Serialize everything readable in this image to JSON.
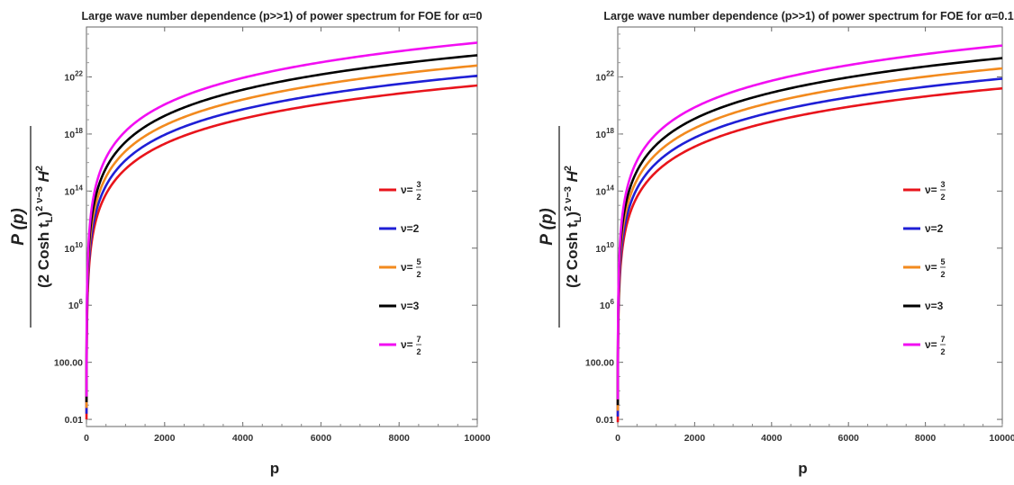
{
  "chart_data": [
    {
      "type": "line",
      "title": "Large wave number dependence (p>>1) of power spectrum for FOE for α=0",
      "xlabel": "p",
      "ylabel": {
        "numerator": "P (p)",
        "denominator": "(2 Cosh t",
        "sub": "L",
        "close": ")",
        "exp": "2 ν−3",
        "tail": "H",
        "tail_exp": "2"
      },
      "xlim": [
        0,
        10000
      ],
      "ylim_log10": [
        -2.5,
        25.5
      ],
      "y_scale": "log",
      "x_ticks": [
        "0",
        "2000",
        "4000",
        "6000",
        "8000",
        "10000"
      ],
      "y_ticks": [
        {
          "label": "0.01",
          "mant": "0.01",
          "exp": ""
        },
        {
          "label": "100.00",
          "mant": "100.00",
          "exp": ""
        },
        {
          "label": "10^6",
          "mant": "10",
          "exp": "6"
        },
        {
          "label": "10^10",
          "mant": "10",
          "exp": "10"
        },
        {
          "label": "10^14",
          "mant": "10",
          "exp": "14"
        },
        {
          "label": "10^18",
          "mant": "10",
          "exp": "18"
        },
        {
          "label": "10^22",
          "mant": "10",
          "exp": "22"
        }
      ],
      "grid": false,
      "legend_position": "right",
      "model": "log10 y = offset + slope * log10 p",
      "series": [
        {
          "name": "ν=3/2",
          "label_main": "ν=",
          "frac_num": "3",
          "frac_den": "2",
          "color": "#e8141b",
          "slope": 5.85,
          "offset": -2.0
        },
        {
          "name": "ν=2",
          "label_main": "ν=2",
          "frac_num": "",
          "frac_den": "",
          "color": "#1f1fd6",
          "slope": 5.92,
          "offset": -1.6
        },
        {
          "name": "ν=5/2",
          "label_main": "ν=",
          "frac_num": "5",
          "frac_den": "2",
          "color": "#f28a1e",
          "slope": 6.0,
          "offset": -1.2
        },
        {
          "name": "ν=3",
          "label_main": "ν=3",
          "frac_num": "",
          "frac_den": "",
          "color": "#000000",
          "slope": 6.08,
          "offset": -0.8
        },
        {
          "name": "ν=7/2",
          "label_main": "ν=",
          "frac_num": "7",
          "frac_den": "2",
          "color": "#f20ef2",
          "slope": 6.2,
          "offset": -0.4
        }
      ]
    },
    {
      "type": "line",
      "title": "Large wave number dependence (p>>1) of power spectrum for FOE for α=0.1",
      "xlabel": "p",
      "ylabel": {
        "numerator": "P (p)",
        "denominator": "(2 Cosh t",
        "sub": "L",
        "close": ")",
        "exp": "2 ν−3",
        "tail": "H",
        "tail_exp": "2"
      },
      "xlim": [
        0,
        10000
      ],
      "ylim_log10": [
        -2.5,
        25.5
      ],
      "y_scale": "log",
      "x_ticks": [
        "0",
        "2000",
        "4000",
        "6000",
        "8000",
        "10000"
      ],
      "y_ticks": [
        {
          "label": "0.01",
          "mant": "0.01",
          "exp": ""
        },
        {
          "label": "100.00",
          "mant": "100.00",
          "exp": ""
        },
        {
          "label": "10^6",
          "mant": "10",
          "exp": "6"
        },
        {
          "label": "10^10",
          "mant": "10",
          "exp": "10"
        },
        {
          "label": "10^14",
          "mant": "10",
          "exp": "14"
        },
        {
          "label": "10^18",
          "mant": "10",
          "exp": "18"
        },
        {
          "label": "10^22",
          "mant": "10",
          "exp": "22"
        }
      ],
      "grid": false,
      "legend_position": "right",
      "model": "log10 y = offset + slope * log10 p",
      "series": [
        {
          "name": "ν=3/2",
          "label_main": "ν=",
          "frac_num": "3",
          "frac_den": "2",
          "color": "#e8141b",
          "slope": 5.85,
          "offset": -2.2
        },
        {
          "name": "ν=2",
          "label_main": "ν=2",
          "frac_num": "",
          "frac_den": "",
          "color": "#1f1fd6",
          "slope": 5.92,
          "offset": -1.8
        },
        {
          "name": "ν=5/2",
          "label_main": "ν=",
          "frac_num": "5",
          "frac_den": "2",
          "color": "#f28a1e",
          "slope": 6.0,
          "offset": -1.4
        },
        {
          "name": "ν=3",
          "label_main": "ν=3",
          "frac_num": "",
          "frac_den": "",
          "color": "#000000",
          "slope": 6.08,
          "offset": -1.0
        },
        {
          "name": "ν=7/2",
          "label_main": "ν=",
          "frac_num": "7",
          "frac_den": "2",
          "color": "#f20ef2",
          "slope": 6.2,
          "offset": -0.6
        }
      ]
    }
  ]
}
